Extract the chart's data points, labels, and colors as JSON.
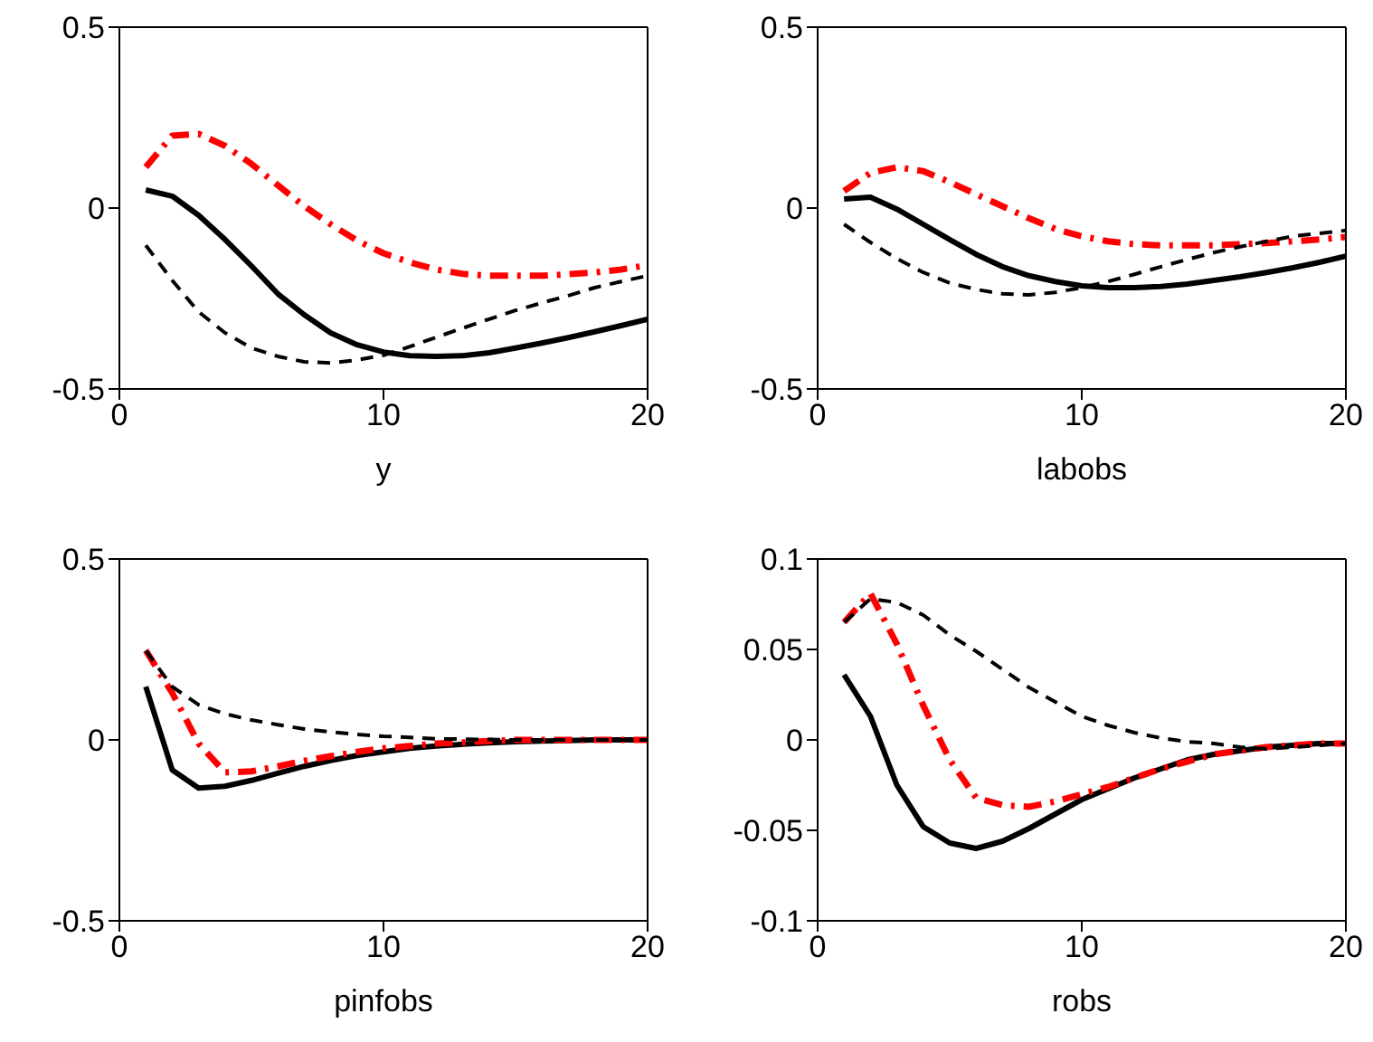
{
  "chart_data": [
    {
      "type": "line",
      "xlabel": "y",
      "x": [
        1,
        2,
        3,
        4,
        5,
        6,
        7,
        8,
        9,
        10,
        11,
        12,
        13,
        14,
        15,
        16,
        17,
        18,
        19,
        20
      ],
      "xlim": [
        0,
        20
      ],
      "xticks": [
        0,
        10,
        20
      ],
      "ylim": [
        -0.5,
        0.5
      ],
      "yticks": [
        -0.5,
        0,
        0.5
      ],
      "series": [
        {
          "color": "#000000",
          "line_style": "solid",
          "values": [
            0.05,
            0.033,
            -0.02,
            -0.087,
            -0.16,
            -0.237,
            -0.295,
            -0.345,
            -0.378,
            -0.398,
            -0.408,
            -0.41,
            -0.408,
            -0.4,
            -0.387,
            -0.373,
            -0.358,
            -0.342,
            -0.325,
            -0.307
          ]
        },
        {
          "color": "#000000",
          "line_style": "dashed",
          "values": [
            -0.103,
            -0.2,
            -0.287,
            -0.345,
            -0.387,
            -0.41,
            -0.425,
            -0.428,
            -0.42,
            -0.407,
            -0.383,
            -0.357,
            -0.332,
            -0.307,
            -0.283,
            -0.262,
            -0.242,
            -0.22,
            -0.203,
            -0.187
          ]
        },
        {
          "color": "#ff0000",
          "line_style": "dashdot",
          "values": [
            0.113,
            0.2,
            0.205,
            0.172,
            0.122,
            0.063,
            0.005,
            -0.045,
            -0.09,
            -0.125,
            -0.15,
            -0.17,
            -0.182,
            -0.187,
            -0.187,
            -0.187,
            -0.183,
            -0.178,
            -0.17,
            -0.158
          ]
        }
      ]
    },
    {
      "type": "line",
      "xlabel": "labobs",
      "x": [
        1,
        2,
        3,
        4,
        5,
        6,
        7,
        8,
        9,
        10,
        11,
        12,
        13,
        14,
        15,
        16,
        17,
        18,
        19,
        20
      ],
      "xlim": [
        0,
        20
      ],
      "xticks": [
        0,
        10,
        20
      ],
      "ylim": [
        -0.5,
        0.5
      ],
      "yticks": [
        -0.5,
        0,
        0.5
      ],
      "series": [
        {
          "color": "#000000",
          "line_style": "solid",
          "values": [
            0.025,
            0.03,
            -0.003,
            -0.045,
            -0.087,
            -0.128,
            -0.162,
            -0.187,
            -0.203,
            -0.215,
            -0.22,
            -0.22,
            -0.217,
            -0.21,
            -0.2,
            -0.19,
            -0.178,
            -0.165,
            -0.15,
            -0.133
          ]
        },
        {
          "color": "#000000",
          "line_style": "dashed",
          "values": [
            -0.045,
            -0.095,
            -0.14,
            -0.178,
            -0.207,
            -0.225,
            -0.237,
            -0.24,
            -0.233,
            -0.22,
            -0.203,
            -0.183,
            -0.162,
            -0.142,
            -0.123,
            -0.107,
            -0.092,
            -0.078,
            -0.07,
            -0.062
          ]
        },
        {
          "color": "#ff0000",
          "line_style": "dashdot",
          "values": [
            0.047,
            0.097,
            0.113,
            0.102,
            0.072,
            0.038,
            0.005,
            -0.028,
            -0.058,
            -0.078,
            -0.092,
            -0.1,
            -0.103,
            -0.103,
            -0.103,
            -0.1,
            -0.097,
            -0.092,
            -0.087,
            -0.08
          ]
        }
      ]
    },
    {
      "type": "line",
      "xlabel": "pinfobs",
      "x": [
        1,
        2,
        3,
        4,
        5,
        6,
        7,
        8,
        9,
        10,
        11,
        12,
        13,
        14,
        15,
        16,
        17,
        18,
        19,
        20
      ],
      "xlim": [
        0,
        20
      ],
      "xticks": [
        0,
        10,
        20
      ],
      "ylim": [
        -0.5,
        0.5
      ],
      "yticks": [
        -0.5,
        0,
        0.5
      ],
      "series": [
        {
          "color": "#000000",
          "line_style": "solid",
          "values": [
            0.147,
            -0.083,
            -0.133,
            -0.128,
            -0.112,
            -0.092,
            -0.073,
            -0.057,
            -0.043,
            -0.033,
            -0.023,
            -0.017,
            -0.012,
            -0.008,
            -0.005,
            -0.003,
            -0.002,
            0,
            0,
            0
          ]
        },
        {
          "color": "#000000",
          "line_style": "dashed",
          "values": [
            0.247,
            0.147,
            0.097,
            0.072,
            0.055,
            0.042,
            0.03,
            0.022,
            0.015,
            0.01,
            0.007,
            0.003,
            0.002,
            0.001,
            0,
            0,
            0,
            0,
            0,
            0
          ]
        },
        {
          "color": "#ff0000",
          "line_style": "dashdot",
          "values": [
            0.247,
            0.13,
            -0.01,
            -0.09,
            -0.087,
            -0.073,
            -0.058,
            -0.045,
            -0.033,
            -0.023,
            -0.017,
            -0.01,
            -0.007,
            -0.003,
            0,
            0,
            0,
            0,
            0,
            0
          ]
        }
      ]
    },
    {
      "type": "line",
      "xlabel": "robs",
      "x": [
        1,
        2,
        3,
        4,
        5,
        6,
        7,
        8,
        9,
        10,
        11,
        12,
        13,
        14,
        15,
        16,
        17,
        18,
        19,
        20
      ],
      "xlim": [
        0,
        20
      ],
      "xticks": [
        0,
        10,
        20
      ],
      "ylim": [
        -0.1,
        0.1
      ],
      "yticks": [
        -0.1,
        -0.05,
        0,
        0.05,
        0.1
      ],
      "series": [
        {
          "color": "#000000",
          "line_style": "solid",
          "values": [
            0.036,
            0.013,
            -0.025,
            -0.048,
            -0.057,
            -0.06,
            -0.056,
            -0.049,
            -0.041,
            -0.033,
            -0.027,
            -0.021,
            -0.016,
            -0.011,
            -0.008,
            -0.006,
            -0.004,
            -0.003,
            -0.002,
            -0.002
          ]
        },
        {
          "color": "#000000",
          "line_style": "dashed",
          "values": [
            0.065,
            0.078,
            0.076,
            0.069,
            0.058,
            0.049,
            0.039,
            0.029,
            0.021,
            0.013,
            0.008,
            0.004,
            0.001,
            -0.001,
            -0.002,
            -0.004,
            -0.005,
            -0.004,
            -0.003,
            -0.002
          ]
        },
        {
          "color": "#ff0000",
          "line_style": "dashdot",
          "values": [
            0.065,
            0.081,
            0.053,
            0.019,
            -0.011,
            -0.032,
            -0.036,
            -0.037,
            -0.034,
            -0.03,
            -0.026,
            -0.021,
            -0.016,
            -0.012,
            -0.008,
            -0.006,
            -0.004,
            -0.003,
            -0.002,
            -0.002
          ]
        }
      ]
    }
  ]
}
